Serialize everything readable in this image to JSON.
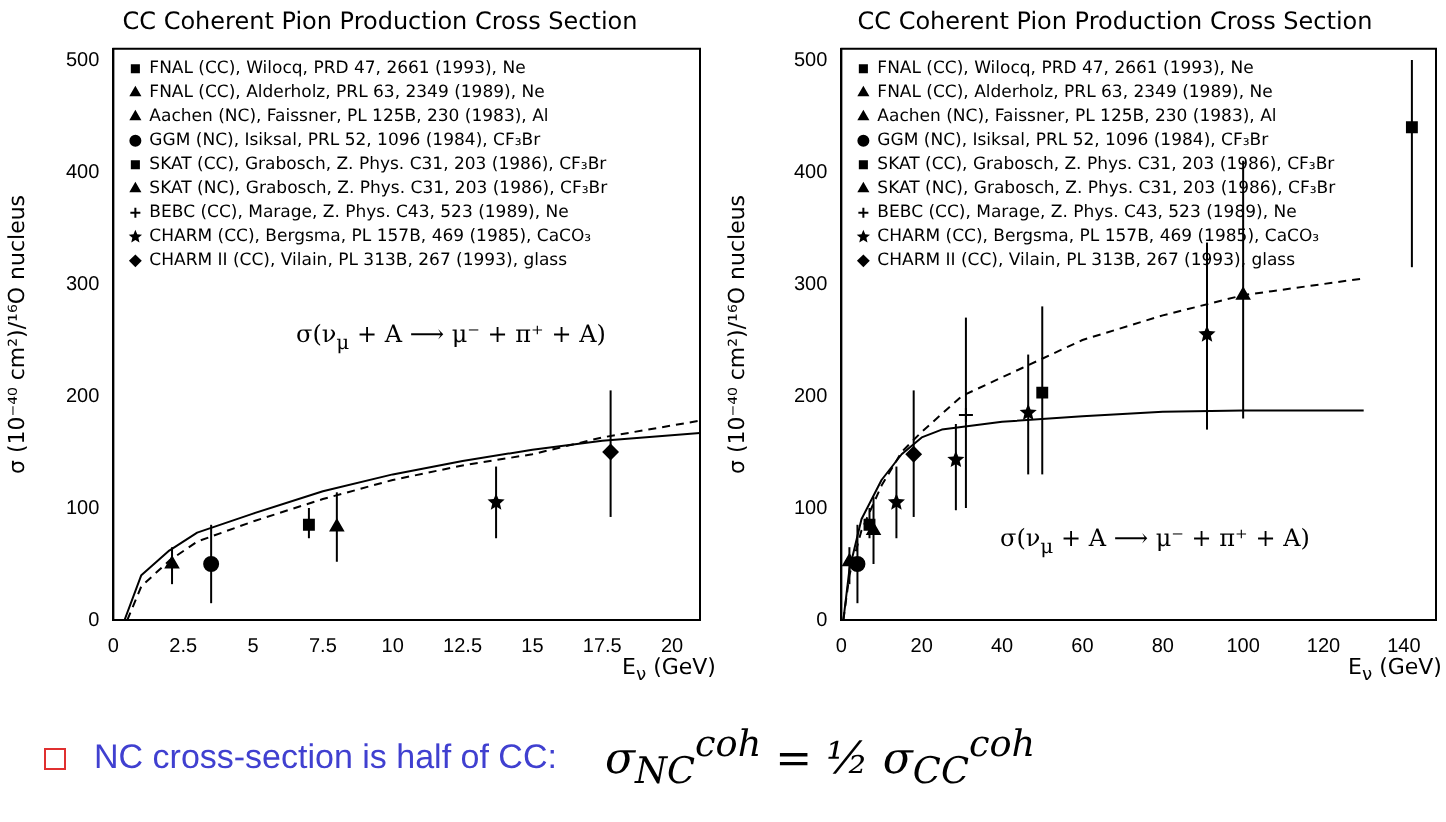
{
  "chart_data": [
    {
      "type": "scatter",
      "title": "CC Coherent Pion Production Cross Section",
      "xlabel": "E$_{ν}$ (GeV)",
      "ylabel": "σ (10⁻⁴⁰ cm²)/¹⁶O nucleus",
      "xlim": [
        0,
        21
      ],
      "ylim": [
        0,
        510
      ],
      "xticks": [
        0,
        2.5,
        5,
        7.5,
        10,
        12.5,
        15,
        17.5,
        20
      ],
      "yticks": [
        0,
        100,
        200,
        300,
        400,
        500
      ],
      "grid": false,
      "legend": "top left",
      "annotations": [
        "σ(ν$_{μ}$ + A ⟶ μ⁻ + π⁺ + A)"
      ],
      "series": [
        {
          "name": "FNAL (CC), Wilocq, PRD 47, 2661 (1993), Ne",
          "color": "#000000",
          "marker": "square"
        },
        {
          "name": "FNAL (CC), Alderholz, PRL 63, 2349 (1989), Ne",
          "color": "#000000",
          "marker": "triangle"
        },
        {
          "name": "Aachen (NC), Faissner, PL 125B, 230 (1983), Al",
          "color": "#000000",
          "marker": "triangle",
          "x": [
            2.1
          ],
          "values": [
            50
          ],
          "errors": [
            [
              32,
              65
            ]
          ]
        },
        {
          "name": "GGM (NC), Isiksal, PRL 52, 1096 (1984), CF₃Br",
          "color": "#000000",
          "marker": "circle",
          "x": [
            3.5
          ],
          "values": [
            50
          ],
          "errors": [
            35
          ]
        },
        {
          "name": "SKAT (CC), Grabosch, Z. Phys. C31, 203 (1986), CF₃Br",
          "color": "#000000",
          "marker": "square",
          "x": [
            7
          ],
          "values": [
            85
          ],
          "errors": [
            [
              73,
              100
            ]
          ]
        },
        {
          "name": "SKAT (NC), Grabosch, Z. Phys. C31, 203 (1986), CF₃Br",
          "color": "#000000",
          "marker": "triangle",
          "x": [
            8
          ],
          "values": [
            83
          ],
          "errors": [
            31
          ]
        },
        {
          "name": "BEBC (CC), Marage, Z. Phys. C43, 523 (1989), Ne",
          "color": "#000000",
          "marker": "cross"
        },
        {
          "name": "CHARM (CC), Bergsma, PL 157B, 469 (1985), CaCO₃",
          "color": "#000000",
          "marker": "star",
          "x": [
            13.7
          ],
          "values": [
            105
          ],
          "errors": [
            32
          ]
        },
        {
          "name": "CHARM II (CC), Vilain, PL 313B, 267 (1993), glass",
          "color": "#000000",
          "marker": "diamond",
          "x": [
            17.8
          ],
          "values": [
            150
          ],
          "errors": [
            [
              92,
              205
            ]
          ]
        },
        {
          "type": "line",
          "color": "#000000",
          "line_style": "solid",
          "x": [
            0.4,
            1,
            2,
            3,
            5,
            7.5,
            10,
            12.5,
            15,
            17.5,
            21
          ],
          "values": [
            0,
            40,
            62,
            78,
            95,
            115,
            130,
            142,
            152,
            160,
            167
          ]
        },
        {
          "type": "line",
          "color": "#000000",
          "line_style": "dashed",
          "x": [
            0.5,
            1,
            2,
            3,
            5,
            7.5,
            10,
            12.5,
            15,
            17.5,
            21
          ],
          "values": [
            0,
            30,
            53,
            70,
            88,
            108,
            125,
            138,
            148,
            163,
            178
          ]
        }
      ]
    },
    {
      "type": "scatter",
      "title": "CC Coherent Pion Production Cross Section",
      "xlabel": "E$_{ν}$ (GeV)",
      "ylabel": "σ (10⁻⁴⁰ cm²)/¹⁶O nucleus",
      "xlim": [
        0,
        148
      ],
      "ylim": [
        0,
        510
      ],
      "xticks": [
        0,
        20,
        40,
        60,
        80,
        100,
        120,
        140
      ],
      "yticks": [
        0,
        100,
        200,
        300,
        400,
        500
      ],
      "grid": false,
      "legend": "top left",
      "annotations": [
        "σ(ν$_{μ}$ + A ⟶ μ⁻ + π⁺ + A)"
      ],
      "series": [
        {
          "name": "FNAL (CC), Wilocq, PRD 47, 2661 (1993), Ne",
          "color": "#000000",
          "marker": "square",
          "x": [
            50,
            142
          ],
          "values": [
            203,
            440
          ],
          "errors": [
            [
              130,
              280
            ],
            [
              315,
              500
            ]
          ]
        },
        {
          "name": "FNAL (CC), Alderholz, PRL 63, 2349 (1989), Ne",
          "color": "#000000",
          "marker": "triangle",
          "x": [
            100
          ],
          "values": [
            290
          ],
          "errors": [
            [
              180,
              410
            ]
          ]
        },
        {
          "name": "Aachen (NC), Faissner, PL 125B, 230 (1983), Al",
          "color": "#000000",
          "marker": "triangle",
          "x": [
            2
          ],
          "values": [
            52
          ],
          "errors": [
            [
              32,
              65
            ]
          ]
        },
        {
          "name": "GGM (NC), Isiksal, PRL 52, 1096 (1984), CF₃Br",
          "color": "#000000",
          "marker": "circle",
          "x": [
            4
          ],
          "values": [
            50
          ],
          "errors": [
            35
          ]
        },
        {
          "name": "SKAT (CC), Grabosch, Z. Phys. C31, 203 (1986), CF₃Br",
          "color": "#000000",
          "marker": "square",
          "x": [
            7
          ],
          "values": [
            85
          ],
          "errors": [
            [
              73,
              100
            ]
          ]
        },
        {
          "name": "SKAT (NC), Grabosch, Z. Phys. C31, 203 (1986), CF₃Br",
          "color": "#000000",
          "marker": "triangle",
          "x": [
            8
          ],
          "values": [
            80
          ],
          "errors": [
            30
          ]
        },
        {
          "name": "BEBC (CC), Marage, Z. Phys. C43, 523 (1989), Ne",
          "color": "#000000",
          "marker": "cross",
          "x": [
            31
          ],
          "values": [
            183
          ],
          "errors": [
            [
              100,
              270
            ]
          ]
        },
        {
          "name": "CHARM (CC), Bergsma, PL 157B, 469 (1985), CaCO₃",
          "color": "#000000",
          "marker": "star",
          "x": [
            13.7,
            28.5,
            46.5,
            91
          ],
          "values": [
            105,
            143,
            185,
            255
          ],
          "errors": [
            32,
            [
              98,
              175
            ],
            [
              130,
              237
            ],
            [
              170,
              337
            ]
          ]
        },
        {
          "name": "CHARM II (CC), Vilain, PL 313B, 267 (1993), glass",
          "color": "#000000",
          "marker": "diamond",
          "x": [
            18
          ],
          "values": [
            148
          ],
          "errors": [
            [
              92,
              205
            ]
          ]
        },
        {
          "type": "line",
          "color": "#000000",
          "line_style": "solid",
          "x": [
            0.5,
            2,
            5,
            10,
            15,
            20,
            25,
            40,
            60,
            80,
            100,
            130
          ],
          "values": [
            0,
            45,
            90,
            125,
            148,
            163,
            170,
            177,
            182,
            186,
            187,
            187
          ]
        },
        {
          "type": "line",
          "color": "#000000",
          "line_style": "dashed",
          "x": [
            0.5,
            2,
            5,
            10,
            15,
            20,
            30,
            45,
            60,
            80,
            100,
            130
          ],
          "values": [
            0,
            40,
            80,
            120,
            150,
            168,
            200,
            225,
            250,
            272,
            290,
            305
          ]
        }
      ]
    },
    {
      "type": "other",
      "annotations": [
        "NC cross-section is half of CC:",
        "σ$_{NC}$$^{coh}$ = ½ σ$_{CC}$$^{coh}$"
      ]
    }
  ]
}
